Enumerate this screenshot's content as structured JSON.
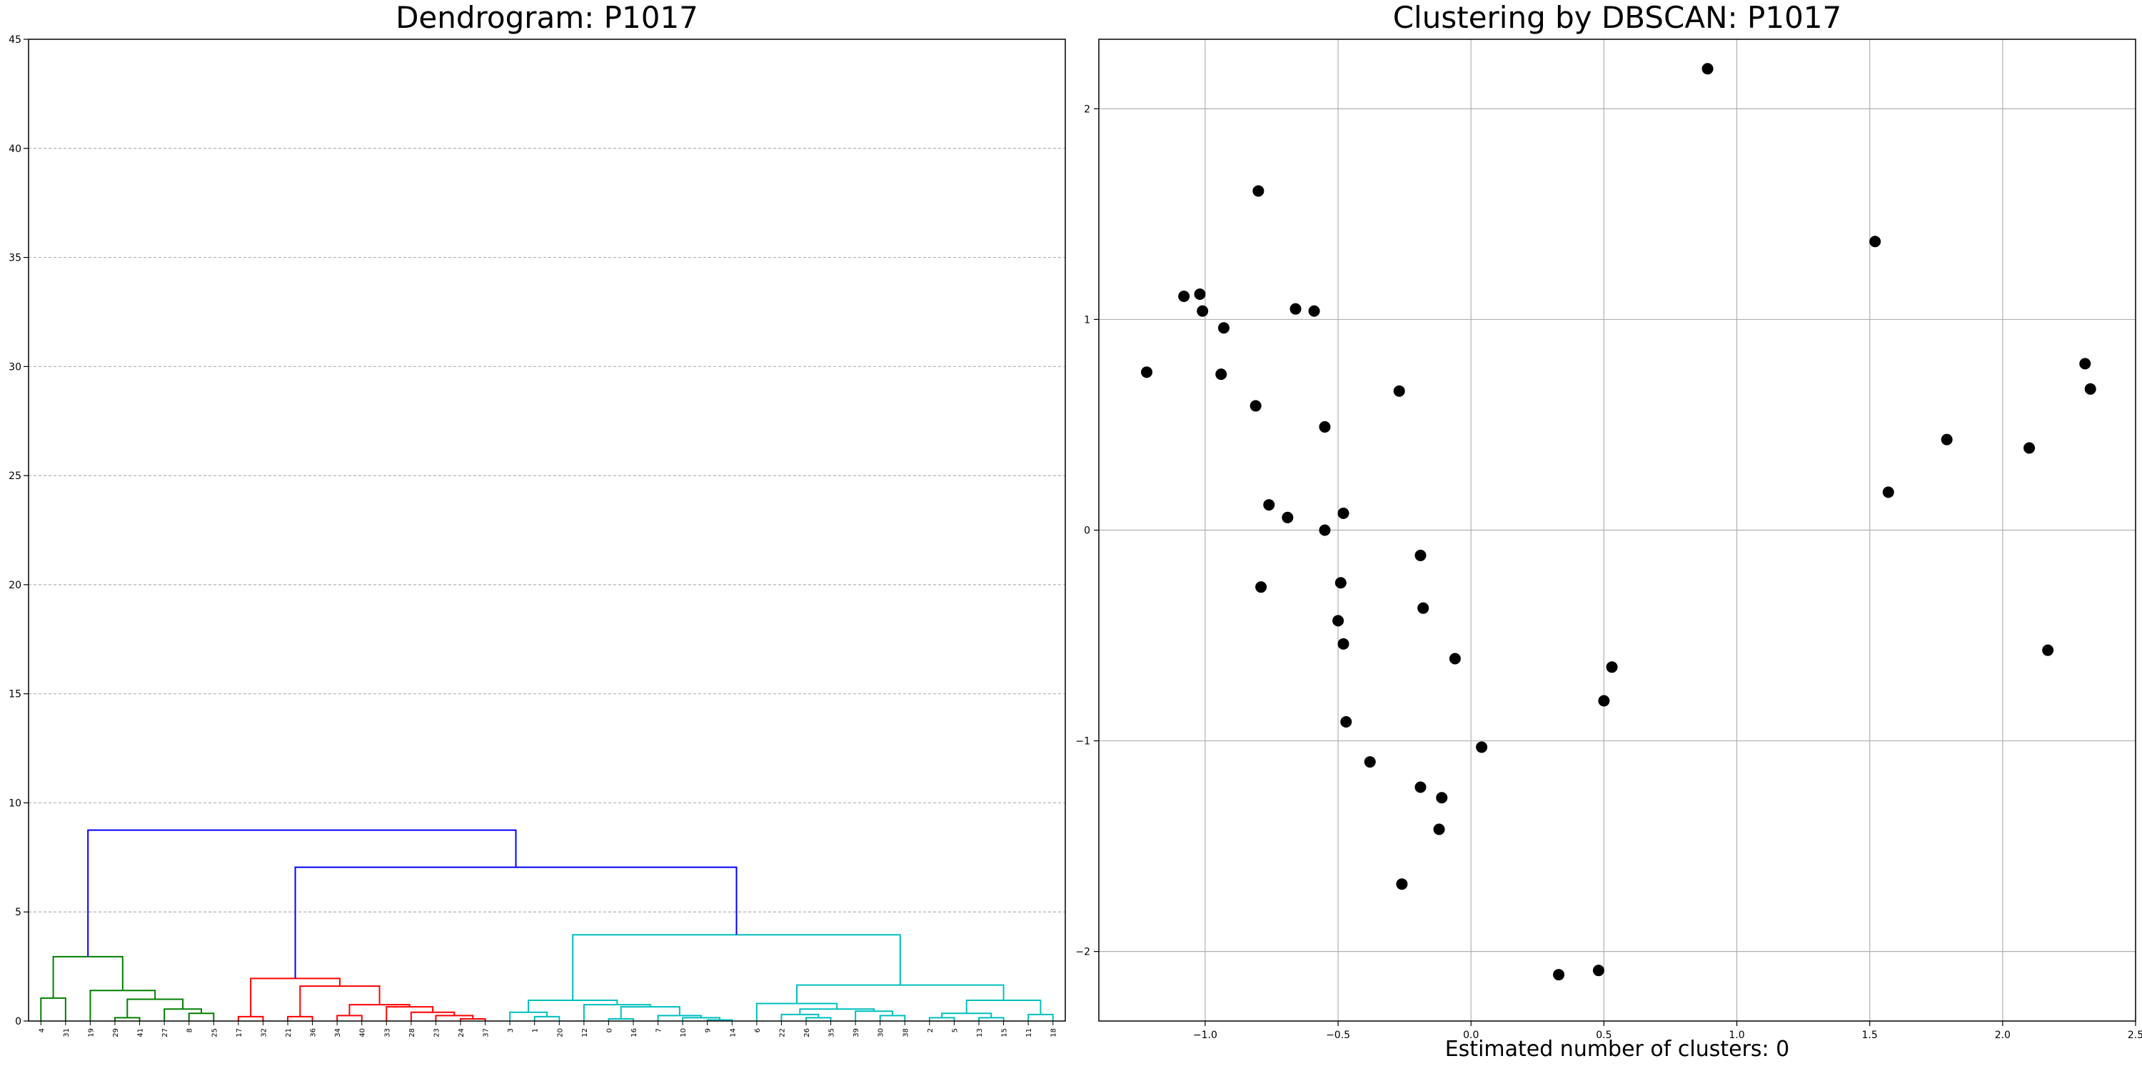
{
  "chart_data": [
    {
      "type": "dendrogram",
      "title": "Dendrogram: P1017",
      "xlabel": "",
      "ylabel": "",
      "ylim": [
        0,
        45
      ],
      "yticks": [
        0,
        5,
        10,
        15,
        20,
        25,
        30,
        35,
        40,
        45
      ],
      "grid": "horizontal dashed",
      "leaf_order": [
        "4",
        "31",
        "19",
        "29",
        "41",
        "27",
        "8",
        "25",
        "17",
        "32",
        "21",
        "36",
        "34",
        "40",
        "33",
        "28",
        "23",
        "24",
        "37",
        "3",
        "1",
        "20",
        "12",
        "0",
        "16",
        "7",
        "10",
        "9",
        "14",
        "6",
        "22",
        "26",
        "35",
        "39",
        "30",
        "38",
        "2",
        "5",
        "13",
        "15",
        "11",
        "18"
      ],
      "colors": {
        "green": "#008000",
        "red": "#ff0000",
        "cyan": "#00bfbf",
        "blue": "#0000ff"
      },
      "links": [
        {
          "left": [
            "leaf",
            0
          ],
          "right": [
            "leaf",
            1
          ],
          "height": 1.05,
          "color": "green"
        },
        {
          "left": [
            "leaf",
            3
          ],
          "right": [
            "leaf",
            4
          ],
          "height": 0.15,
          "color": "green"
        },
        {
          "left": [
            "leaf",
            6
          ],
          "right": [
            "leaf",
            7
          ],
          "height": 0.35,
          "color": "green"
        },
        {
          "left": [
            "leaf",
            5
          ],
          "right": [
            "link",
            2
          ],
          "height": 0.55,
          "color": "green"
        },
        {
          "left": [
            "link",
            1
          ],
          "right": [
            "link",
            3
          ],
          "height": 1.0,
          "color": "green"
        },
        {
          "left": [
            "leaf",
            2
          ],
          "right": [
            "link",
            4
          ],
          "height": 1.4,
          "color": "green"
        },
        {
          "left": [
            "link",
            0
          ],
          "right": [
            "link",
            5
          ],
          "height": 2.95,
          "color": "green"
        },
        {
          "left": [
            "leaf",
            8
          ],
          "right": [
            "leaf",
            9
          ],
          "height": 0.2,
          "color": "red"
        },
        {
          "left": [
            "leaf",
            12
          ],
          "right": [
            "leaf",
            13
          ],
          "height": 0.25,
          "color": "red"
        },
        {
          "left": [
            "leaf",
            17
          ],
          "right": [
            "leaf",
            18
          ],
          "height": 0.1,
          "color": "red"
        },
        {
          "left": [
            "leaf",
            16
          ],
          "right": [
            "link",
            9
          ],
          "height": 0.25,
          "color": "red"
        },
        {
          "left": [
            "leaf",
            15
          ],
          "right": [
            "link",
            10
          ],
          "height": 0.4,
          "color": "red"
        },
        {
          "left": [
            "leaf",
            14
          ],
          "right": [
            "link",
            11
          ],
          "height": 0.65,
          "color": "red"
        },
        {
          "left": [
            "link",
            8
          ],
          "right": [
            "link",
            12
          ],
          "height": 0.75,
          "color": "red"
        },
        {
          "left": [
            "leaf",
            10
          ],
          "right": [
            "leaf",
            11
          ],
          "height": 0.2,
          "color": "red"
        },
        {
          "left": [
            "link",
            14
          ],
          "right": [
            "link",
            13
          ],
          "height": 1.6,
          "color": "red"
        },
        {
          "left": [
            "link",
            7
          ],
          "right": [
            "link",
            15
          ],
          "height": 1.95,
          "color": "red"
        },
        {
          "left": [
            "leaf",
            20
          ],
          "right": [
            "leaf",
            21
          ],
          "height": 0.2,
          "color": "cyan"
        },
        {
          "left": [
            "leaf",
            19
          ],
          "right": [
            "link",
            17
          ],
          "height": 0.4,
          "color": "cyan"
        },
        {
          "left": [
            "leaf",
            23
          ],
          "right": [
            "leaf",
            24
          ],
          "height": 0.1,
          "color": "cyan"
        },
        {
          "left": [
            "leaf",
            27
          ],
          "right": [
            "leaf",
            28
          ],
          "height": 0.05,
          "color": "cyan"
        },
        {
          "left": [
            "leaf",
            26
          ],
          "right": [
            "link",
            20
          ],
          "height": 0.15,
          "color": "cyan"
        },
        {
          "left": [
            "leaf",
            25
          ],
          "right": [
            "link",
            21
          ],
          "height": 0.25,
          "color": "cyan"
        },
        {
          "left": [
            "link",
            19
          ],
          "right": [
            "link",
            22
          ],
          "height": 0.65,
          "color": "cyan"
        },
        {
          "left": [
            "leaf",
            22
          ],
          "right": [
            "link",
            23
          ],
          "height": 0.75,
          "color": "cyan"
        },
        {
          "left": [
            "link",
            18
          ],
          "right": [
            "link",
            24
          ],
          "height": 0.95,
          "color": "cyan"
        },
        {
          "left": [
            "leaf",
            31
          ],
          "right": [
            "leaf",
            32
          ],
          "height": 0.15,
          "color": "cyan"
        },
        {
          "left": [
            "leaf",
            30
          ],
          "right": [
            "link",
            26
          ],
          "height": 0.3,
          "color": "cyan"
        },
        {
          "left": [
            "leaf",
            34
          ],
          "right": [
            "leaf",
            35
          ],
          "height": 0.25,
          "color": "cyan"
        },
        {
          "left": [
            "leaf",
            33
          ],
          "right": [
            "link",
            28
          ],
          "height": 0.45,
          "color": "cyan"
        },
        {
          "left": [
            "link",
            27
          ],
          "right": [
            "link",
            29
          ],
          "height": 0.55,
          "color": "cyan"
        },
        {
          "left": [
            "leaf",
            29
          ],
          "right": [
            "link",
            30
          ],
          "height": 0.8,
          "color": "cyan"
        },
        {
          "left": [
            "leaf",
            36
          ],
          "right": [
            "leaf",
            37
          ],
          "height": 0.15,
          "color": "cyan"
        },
        {
          "left": [
            "leaf",
            38
          ],
          "right": [
            "leaf",
            39
          ],
          "height": 0.15,
          "color": "cyan"
        },
        {
          "left": [
            "link",
            32
          ],
          "right": [
            "link",
            33
          ],
          "height": 0.35,
          "color": "cyan"
        },
        {
          "left": [
            "leaf",
            40
          ],
          "right": [
            "leaf",
            41
          ],
          "height": 0.3,
          "color": "cyan"
        },
        {
          "left": [
            "link",
            34
          ],
          "right": [
            "link",
            35
          ],
          "height": 0.95,
          "color": "cyan"
        },
        {
          "left": [
            "link",
            31
          ],
          "right": [
            "link",
            36
          ],
          "height": 1.65,
          "color": "cyan"
        },
        {
          "left": [
            "link",
            25
          ],
          "right": [
            "link",
            37
          ],
          "height": 3.95,
          "color": "cyan"
        },
        {
          "left": [
            "link",
            16
          ],
          "right": [
            "link",
            38
          ],
          "height": 7.05,
          "color": "blue"
        },
        {
          "left": [
            "link",
            6
          ],
          "right": [
            "link",
            39
          ],
          "height": 8.75,
          "color": "blue"
        }
      ]
    },
    {
      "type": "scatter",
      "title": "Clustering by DBSCAN: P1017",
      "xlabel": "Estimated number of clusters: 0",
      "ylabel": "",
      "xlim": [
        -1.4,
        2.5
      ],
      "ylim": [
        -2.33,
        2.33
      ],
      "xticks": [
        -1.0,
        -0.5,
        0.0,
        0.5,
        1.0,
        1.5,
        2.0,
        2.5
      ],
      "xtick_labels": [
        "−1.0",
        "−0.5",
        "0.0",
        "0.5",
        "1.0",
        "1.5",
        "2.0",
        "2.5"
      ],
      "yticks": [
        -2,
        -1,
        0,
        1,
        2
      ],
      "ytick_labels": [
        "−2",
        "−1",
        "0",
        "1",
        "2"
      ],
      "grid": true,
      "marker_color": "#000000",
      "points": [
        {
          "x": 0.89,
          "y": 2.19
        },
        {
          "x": -0.8,
          "y": 1.61
        },
        {
          "x": 1.52,
          "y": 1.37
        },
        {
          "x": -1.08,
          "y": 1.11
        },
        {
          "x": -1.02,
          "y": 1.12
        },
        {
          "x": -1.01,
          "y": 1.04
        },
        {
          "x": -0.66,
          "y": 1.05
        },
        {
          "x": -0.59,
          "y": 1.04
        },
        {
          "x": -0.93,
          "y": 0.96
        },
        {
          "x": -1.22,
          "y": 0.75
        },
        {
          "x": -0.94,
          "y": 0.74
        },
        {
          "x": -0.81,
          "y": 0.59
        },
        {
          "x": -0.27,
          "y": 0.66
        },
        {
          "x": -0.55,
          "y": 0.49
        },
        {
          "x": 2.31,
          "y": 0.79
        },
        {
          "x": 2.33,
          "y": 0.67
        },
        {
          "x": 1.79,
          "y": 0.43
        },
        {
          "x": 2.1,
          "y": 0.39
        },
        {
          "x": 1.57,
          "y": 0.18
        },
        {
          "x": -0.76,
          "y": 0.12
        },
        {
          "x": -0.69,
          "y": 0.06
        },
        {
          "x": -0.48,
          "y": 0.08
        },
        {
          "x": -0.55,
          "y": 0.0
        },
        {
          "x": -0.19,
          "y": -0.12
        },
        {
          "x": -0.18,
          "y": -0.37
        },
        {
          "x": -0.79,
          "y": -0.27
        },
        {
          "x": -0.49,
          "y": -0.25
        },
        {
          "x": -0.5,
          "y": -0.43
        },
        {
          "x": -0.48,
          "y": -0.54
        },
        {
          "x": -0.06,
          "y": -0.61
        },
        {
          "x": 0.53,
          "y": -0.65
        },
        {
          "x": 2.17,
          "y": -0.57
        },
        {
          "x": 0.5,
          "y": -0.81
        },
        {
          "x": -0.47,
          "y": -0.91
        },
        {
          "x": 0.04,
          "y": -1.03
        },
        {
          "x": -0.38,
          "y": -1.1
        },
        {
          "x": -0.19,
          "y": -1.22
        },
        {
          "x": -0.11,
          "y": -1.27
        },
        {
          "x": -0.12,
          "y": -1.42
        },
        {
          "x": -0.26,
          "y": -1.68
        },
        {
          "x": 0.33,
          "y": -2.11
        },
        {
          "x": 0.48,
          "y": -2.09
        }
      ]
    }
  ]
}
